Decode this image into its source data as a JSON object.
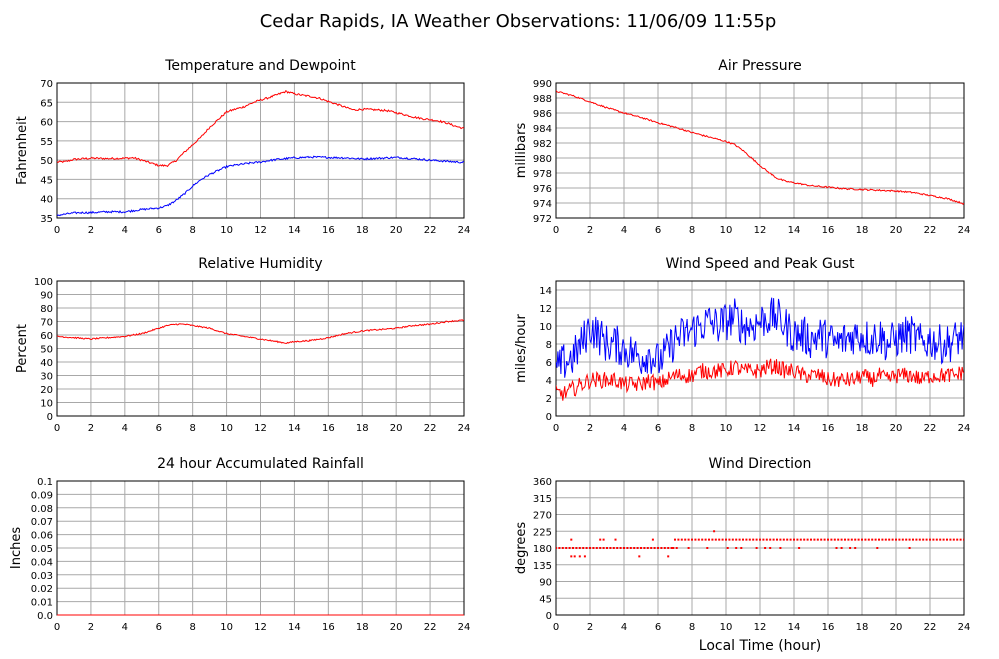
{
  "page": {
    "title": "Cedar Rapids, IA Weather Observations: 11/06/09 11:55p",
    "xlabel": "Local Time (hour)"
  },
  "colors": {
    "red": "#ff0000",
    "blue": "#0000ff",
    "grid": "#a8a8a8",
    "axis": "#000000"
  },
  "chart_data": [
    {
      "id": "temp",
      "type": "line",
      "title": "Temperature and Dewpoint",
      "xlabel": "",
      "ylabel": "Fahrenheit",
      "xlim": [
        0,
        24
      ],
      "ylim": [
        35,
        70
      ],
      "xticks": [
        0,
        2,
        4,
        6,
        8,
        10,
        12,
        14,
        16,
        18,
        20,
        22,
        24
      ],
      "yticks": [
        35,
        40,
        45,
        50,
        55,
        60,
        65,
        70
      ],
      "grid": true,
      "series": [
        {
          "color": "#ff0000",
          "noise": 0.25,
          "x": [
            0,
            0.5,
            1,
            2,
            3,
            4,
            4.5,
            5,
            5.5,
            6,
            6.5,
            7,
            7.5,
            8,
            8.5,
            9,
            9.5,
            10,
            10.5,
            11,
            11.5,
            12,
            12.5,
            13,
            13.5,
            14,
            14.5,
            15,
            15.5,
            16,
            16.5,
            17,
            17.5,
            18,
            18.5,
            19,
            19.5,
            20,
            20.5,
            21,
            21.5,
            22,
            22.5,
            23,
            23.5,
            24
          ],
          "y": [
            49.5,
            49.6,
            50.2,
            50.5,
            50.4,
            50.5,
            50.6,
            50.0,
            49.3,
            48.6,
            48.6,
            49.8,
            52.0,
            54.0,
            56.0,
            58.5,
            60.5,
            62.5,
            63.2,
            63.8,
            64.8,
            65.6,
            66.2,
            67.0,
            67.8,
            67.2,
            66.8,
            66.5,
            66.0,
            65.2,
            64.5,
            63.7,
            63.0,
            63.2,
            63.1,
            63.0,
            62.8,
            62.3,
            61.8,
            61.2,
            60.8,
            60.5,
            60.2,
            59.6,
            58.8,
            58.2
          ]
        },
        {
          "color": "#0000ff",
          "noise": 0.25,
          "x": [
            0,
            0.5,
            1,
            1.5,
            2,
            2.5,
            3,
            3.5,
            4,
            4.5,
            5,
            5.5,
            6,
            6.5,
            7,
            7.5,
            8,
            8.5,
            9,
            9.5,
            10,
            10.5,
            11,
            11.5,
            12,
            12.5,
            13,
            13.5,
            14,
            15,
            16,
            17,
            18,
            19,
            20,
            21,
            22,
            23,
            24
          ],
          "y": [
            35.7,
            36.0,
            36.3,
            36.4,
            36.4,
            36.5,
            36.6,
            36.6,
            36.6,
            36.9,
            37.2,
            37.4,
            37.6,
            38.2,
            39.5,
            41.2,
            43.3,
            45.0,
            46.3,
            47.3,
            48.3,
            48.7,
            49.0,
            49.3,
            49.5,
            49.9,
            50.2,
            50.4,
            50.6,
            50.8,
            50.7,
            50.6,
            50.3,
            50.5,
            50.7,
            50.4,
            50.0,
            49.7,
            49.4
          ]
        }
      ]
    },
    {
      "id": "pressure",
      "type": "line",
      "title": "Air Pressure",
      "xlabel": "",
      "ylabel": "millibars",
      "xlim": [
        0,
        24
      ],
      "ylim": [
        972,
        990
      ],
      "xticks": [
        0,
        2,
        4,
        6,
        8,
        10,
        12,
        14,
        16,
        18,
        20,
        22,
        24
      ],
      "yticks": [
        972,
        974,
        976,
        978,
        980,
        982,
        984,
        986,
        988,
        990
      ],
      "grid": true,
      "series": [
        {
          "color": "#ff0000",
          "noise": 0.1,
          "x": [
            0,
            1,
            2,
            3,
            4,
            5,
            6,
            7,
            8,
            9,
            10,
            10.5,
            11,
            11.5,
            12,
            12.5,
            13,
            13.5,
            14,
            15,
            16,
            17,
            18,
            19,
            20,
            21,
            22,
            23,
            24
          ],
          "y": [
            988.9,
            988.3,
            987.5,
            986.7,
            986.0,
            985.4,
            984.7,
            984.1,
            983.4,
            982.8,
            982.2,
            981.8,
            981.0,
            980.0,
            979.0,
            978.1,
            977.3,
            976.9,
            976.7,
            976.3,
            976.1,
            975.9,
            975.8,
            975.7,
            975.6,
            975.4,
            975.0,
            974.6,
            973.9
          ]
        }
      ]
    },
    {
      "id": "humidity",
      "type": "line",
      "title": "Relative Humidity",
      "xlabel": "",
      "ylabel": "Percent",
      "xlim": [
        0,
        24
      ],
      "ylim": [
        0,
        100
      ],
      "xticks": [
        0,
        2,
        4,
        6,
        8,
        10,
        12,
        14,
        16,
        18,
        20,
        22,
        24
      ],
      "yticks": [
        0,
        10,
        20,
        30,
        40,
        50,
        60,
        70,
        80,
        90,
        100
      ],
      "grid": true,
      "series": [
        {
          "color": "#ff0000",
          "noise": 0.5,
          "x": [
            0,
            1,
            2,
            3,
            4,
            5,
            6,
            6.5,
            7,
            7.5,
            8,
            9,
            10,
            11,
            12,
            12.5,
            13,
            13.5,
            14,
            15,
            16,
            17,
            18,
            19,
            20,
            21,
            22,
            23,
            24
          ],
          "y": [
            59,
            58,
            57,
            58,
            59,
            61,
            65,
            67,
            68,
            68,
            67,
            65,
            61,
            59,
            57,
            56,
            55,
            54,
            55,
            56,
            58,
            61,
            63,
            64,
            65,
            67,
            68,
            70,
            71
          ]
        }
      ]
    },
    {
      "id": "wind",
      "type": "line",
      "title": "Wind Speed and Peak Gust",
      "xlabel": "",
      "ylabel": "miles/hour",
      "xlim": [
        0,
        24
      ],
      "ylim": [
        0,
        15
      ],
      "xticks": [
        0,
        2,
        4,
        6,
        8,
        10,
        12,
        14,
        16,
        18,
        20,
        22,
        24
      ],
      "yticks": [
        0,
        2,
        4,
        6,
        8,
        10,
        12,
        14
      ],
      "grid": true,
      "series": [
        {
          "color": "#0000ff",
          "noise": 2.2,
          "x": [
            0,
            0.5,
            1,
            1.5,
            2,
            2.5,
            3,
            3.5,
            4,
            4.5,
            5,
            5.5,
            6,
            6.5,
            7,
            7.5,
            8,
            8.5,
            9,
            9.5,
            10,
            10.5,
            11,
            11.5,
            12,
            12.5,
            13,
            13.5,
            14,
            14.5,
            15,
            15.5,
            16,
            16.5,
            17,
            17.5,
            18,
            18.5,
            19,
            19.5,
            20,
            20.5,
            21,
            21.5,
            22,
            22.5,
            23,
            23.5,
            24
          ],
          "y": [
            5,
            6,
            6.5,
            8,
            10,
            9,
            8,
            8,
            7.5,
            7,
            6.5,
            7,
            6,
            7,
            8.5,
            9,
            9.5,
            10,
            10.5,
            10,
            10.5,
            11,
            10,
            10,
            10.5,
            11,
            11,
            10,
            9,
            9,
            8.5,
            9,
            8.5,
            8,
            8.5,
            9,
            9,
            8.5,
            9,
            8,
            8.5,
            9,
            9,
            8,
            8.5,
            8,
            8,
            8.5,
            9
          ]
        },
        {
          "color": "#ff0000",
          "noise": 0.9,
          "x": [
            0,
            0.5,
            1,
            1.5,
            2,
            2.5,
            3,
            3.5,
            4,
            4.5,
            5,
            5.5,
            6,
            6.5,
            7,
            7.5,
            8,
            8.5,
            9,
            9.5,
            10,
            10.5,
            11,
            11.5,
            12,
            12.5,
            13,
            13.5,
            14,
            14.5,
            15,
            15.5,
            16,
            16.5,
            17,
            17.5,
            18,
            18.5,
            19,
            19.5,
            20,
            20.5,
            21,
            21.5,
            22,
            22.5,
            23,
            23.5,
            24
          ],
          "y": [
            2.5,
            2.5,
            3,
            3.5,
            4,
            4,
            4,
            4,
            3.5,
            3.5,
            3.5,
            4,
            3.5,
            4,
            4.5,
            4.5,
            4.5,
            5,
            5,
            5,
            5,
            5.5,
            5,
            5,
            5,
            5.5,
            5.5,
            5,
            5,
            4.5,
            4.5,
            4.5,
            4,
            4,
            4,
            4,
            4.5,
            4,
            4.5,
            4,
            4.5,
            4.5,
            4.5,
            4,
            4.5,
            4.5,
            4.5,
            4.5,
            5
          ]
        }
      ]
    },
    {
      "id": "rain",
      "type": "line",
      "title": "24 hour Accumulated Rainfall",
      "xlabel": "",
      "ylabel": "Inches",
      "xlim": [
        0,
        24
      ],
      "ylim": [
        0,
        0.1
      ],
      "xticks": [
        0,
        2,
        4,
        6,
        8,
        10,
        12,
        14,
        16,
        18,
        20,
        22,
        24
      ],
      "yticks": [
        0.0,
        0.01,
        0.02,
        0.03,
        0.04,
        0.05,
        0.06,
        0.07,
        0.08,
        0.09,
        0.1
      ],
      "ytick_labels": [
        "0.0",
        "0.01",
        "0.02",
        "0.03",
        "0.04",
        "0.05",
        "0.06",
        "0.07",
        "0.08",
        "0.09",
        "0.1"
      ],
      "grid": true,
      "series": [
        {
          "color": "#ff0000",
          "noise": 0,
          "x": [
            0,
            24
          ],
          "y": [
            0,
            0
          ]
        }
      ]
    },
    {
      "id": "direction",
      "type": "scatter",
      "title": "Wind Direction",
      "xlabel": "Local Time (hour)",
      "ylabel": "degrees",
      "xlim": [
        0,
        24
      ],
      "ylim": [
        0,
        360
      ],
      "xticks": [
        0,
        2,
        4,
        6,
        8,
        10,
        12,
        14,
        16,
        18,
        20,
        22,
        24
      ],
      "yticks": [
        0,
        45,
        90,
        135,
        180,
        225,
        270,
        315,
        360
      ],
      "grid": true,
      "series": [
        {
          "color": "#ff0000",
          "x": [
            0,
            0.2,
            0.4,
            0.6,
            0.8,
            1,
            1.2,
            1.4,
            1.6,
            1.8,
            2,
            2.2,
            2.4,
            2.6,
            2.8,
            3,
            3.2,
            3.4,
            3.6,
            3.8,
            4,
            4.2,
            4.4,
            4.6,
            4.8,
            5,
            5.2,
            5.4,
            5.6,
            5.8,
            6,
            6.2,
            6.4,
            6.6,
            6.8,
            7,
            7.2,
            7.4,
            7.6,
            7.8,
            8,
            8.2,
            8.4,
            8.6,
            8.8,
            9,
            9.2,
            9.4,
            9.6,
            9.8,
            10,
            10.2,
            10.4,
            10.6,
            10.8,
            11,
            11.2,
            11.4,
            11.6,
            11.8,
            12,
            12.2,
            12.4,
            12.6,
            12.8,
            13,
            13.2,
            13.4,
            13.6,
            13.8,
            14,
            14.2,
            14.4,
            14.6,
            14.8,
            15,
            15.2,
            15.4,
            15.6,
            15.8,
            16,
            16.2,
            16.4,
            16.6,
            16.8,
            17,
            17.2,
            17.4,
            17.6,
            17.8,
            18,
            18.2,
            18.4,
            18.6,
            18.8,
            19,
            19.2,
            19.4,
            19.6,
            19.8,
            20,
            20.2,
            20.4,
            20.6,
            20.8,
            21,
            21.2,
            21.4,
            21.6,
            21.8,
            22,
            22.2,
            22.4,
            22.6,
            22.8,
            23,
            23.2,
            23.4,
            23.6,
            23.8,
            24,
            0.9,
            1.1,
            1.4,
            1.7,
            0.9,
            2.6,
            2.8,
            3.5,
            4.9,
            5.7,
            6.6,
            9.3,
            6.9,
            7.8,
            8.9,
            10.1,
            10.9,
            11.8,
            12.6,
            13.2,
            14.3,
            16.5,
            16.8,
            17.3,
            17.6,
            18.9,
            20.8,
            7.1,
            10.6,
            12.3
          ],
          "y": [
            180,
            180,
            180,
            180,
            180,
            180,
            180,
            180,
            180,
            180,
            180,
            180,
            180,
            180,
            180,
            180,
            180,
            180,
            180,
            180,
            180,
            180,
            180,
            180,
            180,
            180,
            180,
            180,
            180,
            180,
            180,
            180,
            180,
            180,
            180,
            202.5,
            202.5,
            202.5,
            202.5,
            202.5,
            202.5,
            202.5,
            202.5,
            202.5,
            202.5,
            202.5,
            202.5,
            202.5,
            202.5,
            202.5,
            202.5,
            202.5,
            202.5,
            202.5,
            202.5,
            202.5,
            202.5,
            202.5,
            202.5,
            202.5,
            202.5,
            202.5,
            202.5,
            202.5,
            202.5,
            202.5,
            202.5,
            202.5,
            202.5,
            202.5,
            202.5,
            202.5,
            202.5,
            202.5,
            202.5,
            202.5,
            202.5,
            202.5,
            202.5,
            202.5,
            202.5,
            202.5,
            202.5,
            202.5,
            202.5,
            202.5,
            202.5,
            202.5,
            202.5,
            202.5,
            202.5,
            202.5,
            202.5,
            202.5,
            202.5,
            202.5,
            202.5,
            202.5,
            202.5,
            202.5,
            202.5,
            202.5,
            202.5,
            202.5,
            202.5,
            202.5,
            202.5,
            202.5,
            202.5,
            202.5,
            202.5,
            202.5,
            202.5,
            202.5,
            202.5,
            202.5,
            202.5,
            202.5,
            202.5,
            202.5,
            202.5,
            157.5,
            157.5,
            157.5,
            157.5,
            202.5,
            202.5,
            202.5,
            202.5,
            157.5,
            202.5,
            157.5,
            225,
            180,
            180,
            180,
            180,
            180,
            180,
            180,
            180,
            180,
            180,
            180,
            180,
            180,
            180,
            180,
            180,
            180,
            180
          ]
        }
      ]
    }
  ]
}
